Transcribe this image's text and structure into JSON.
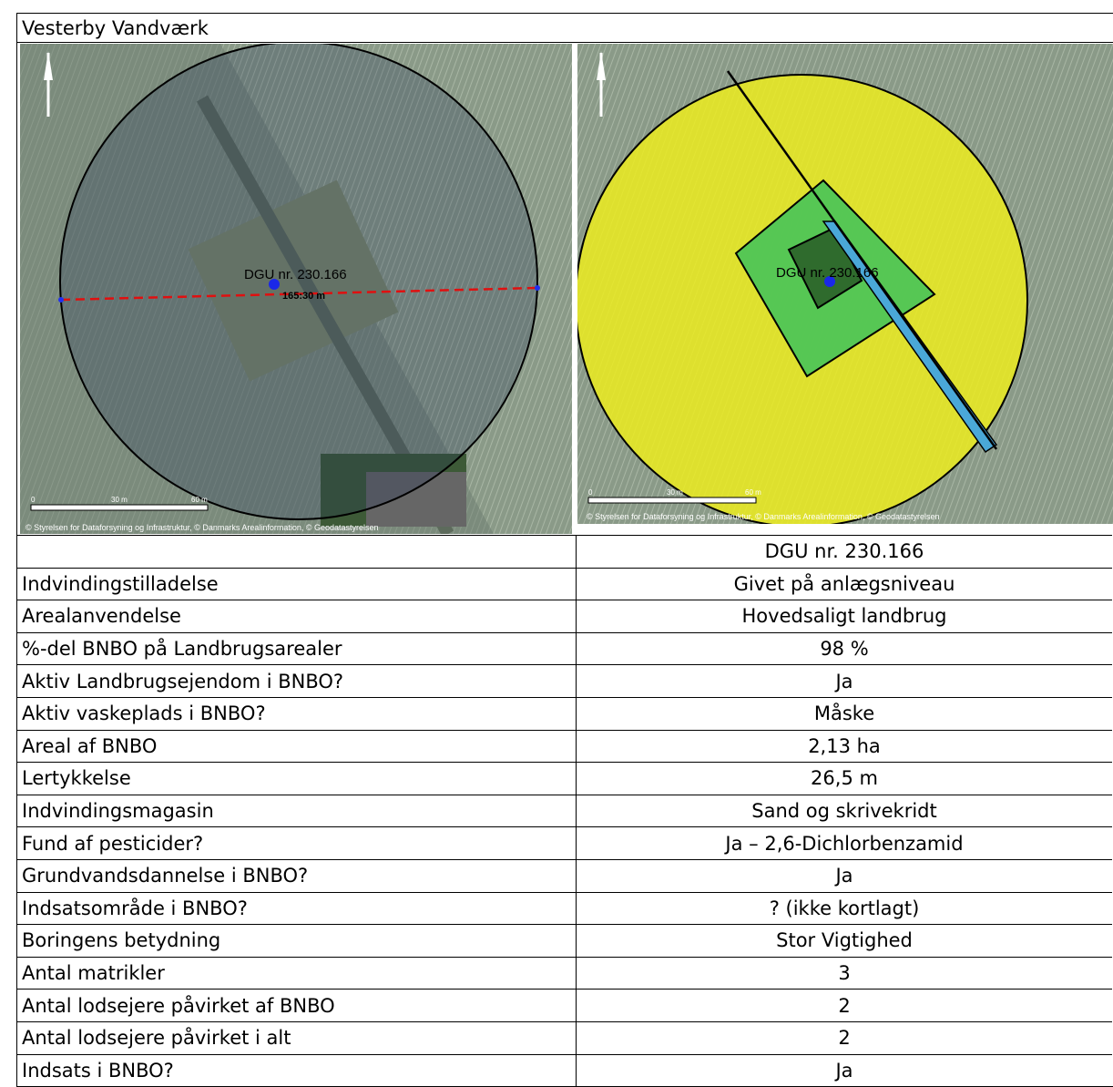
{
  "header": {
    "title": "Vesterby Vandværk"
  },
  "maps": [
    {
      "well_label": "DGU nr. 230.166",
      "distance_label": "165:30 m",
      "scale": [
        "0",
        "30 m",
        "60 m"
      ],
      "credit": "© Styrelsen for Dataforsyning og Infrastruktur, © Danmarks Arealinformation, © Geodatastyrelsen"
    },
    {
      "well_label": "DGU nr. 230.166",
      "scale": [
        "0",
        "30 m",
        "60 m"
      ],
      "credit": "© Styrelsen for Dataforsyning og Infrastruktur, © Danmarks Arealinformation, © Geodatastyrelsen"
    }
  ],
  "table": {
    "column": "DGU nr. 230.166",
    "rows": [
      [
        "Indvindingstilladelse",
        "Givet på anlægsniveau"
      ],
      [
        "Arealanvendelse",
        "Hovedsaligt landbrug"
      ],
      [
        "%-del BNBO på Landbrugsarealer",
        "98 %"
      ],
      [
        "Aktiv Landbrugsejendom i BNBO?",
        "Ja"
      ],
      [
        "Aktiv vaskeplads i BNBO?",
        "Måske"
      ],
      [
        "Areal af BNBO",
        "2,13 ha"
      ],
      [
        "Lertykkelse",
        "26,5 m"
      ],
      [
        "Indvindingsmagasin",
        "Sand og skrivekridt"
      ],
      [
        "Fund af pesticider?",
        "Ja – 2,6-Dichlorbenzamid"
      ],
      [
        "Grundvandsdannelse i BNBO?",
        "Ja"
      ],
      [
        "Indsatsområde i BNBO?",
        "? (ikke kortlagt)"
      ],
      [
        "Boringens betydning",
        "Stor Vigtighed"
      ],
      [
        "Antal matrikler",
        "3"
      ],
      [
        "Antal lodsejere påvirket af BNBO",
        "2"
      ],
      [
        "Antal lodsejere påvirket i alt",
        "2"
      ],
      [
        "Indsats i BNBO?",
        "Ja"
      ]
    ]
  }
}
